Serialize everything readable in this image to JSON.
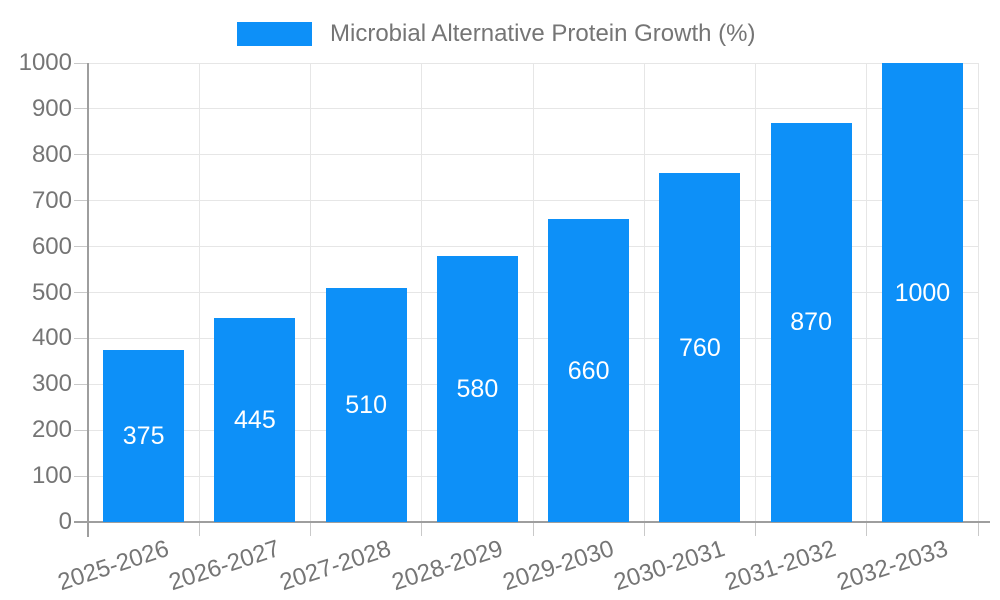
{
  "legend": {
    "label": "Microbial Alternative Protein Growth (%)"
  },
  "chart_data": {
    "type": "bar",
    "title": "Microbial Alternative Protein Growth (%)",
    "categories": [
      "2025-2026",
      "2026-2027",
      "2027-2028",
      "2028-2029",
      "2029-2030",
      "2030-2031",
      "2031-2032",
      "2032-2033"
    ],
    "values": [
      375,
      445,
      510,
      580,
      660,
      760,
      870,
      1000
    ],
    "xlabel": "",
    "ylabel": "",
    "ylim": [
      0,
      1000
    ],
    "ytick_step": 100,
    "yticks": [
      0,
      100,
      200,
      300,
      400,
      500,
      600,
      700,
      800,
      900,
      1000
    ],
    "grid": true,
    "legend_position": "top-center",
    "colors": {
      "bar": "#0d90f8",
      "value_label": "#ffffff",
      "axis": "#9e9e9e",
      "gridline": "#e6e6e6",
      "tick": "#c9c9c9",
      "text": "#757575",
      "background": "#ffffff"
    }
  }
}
